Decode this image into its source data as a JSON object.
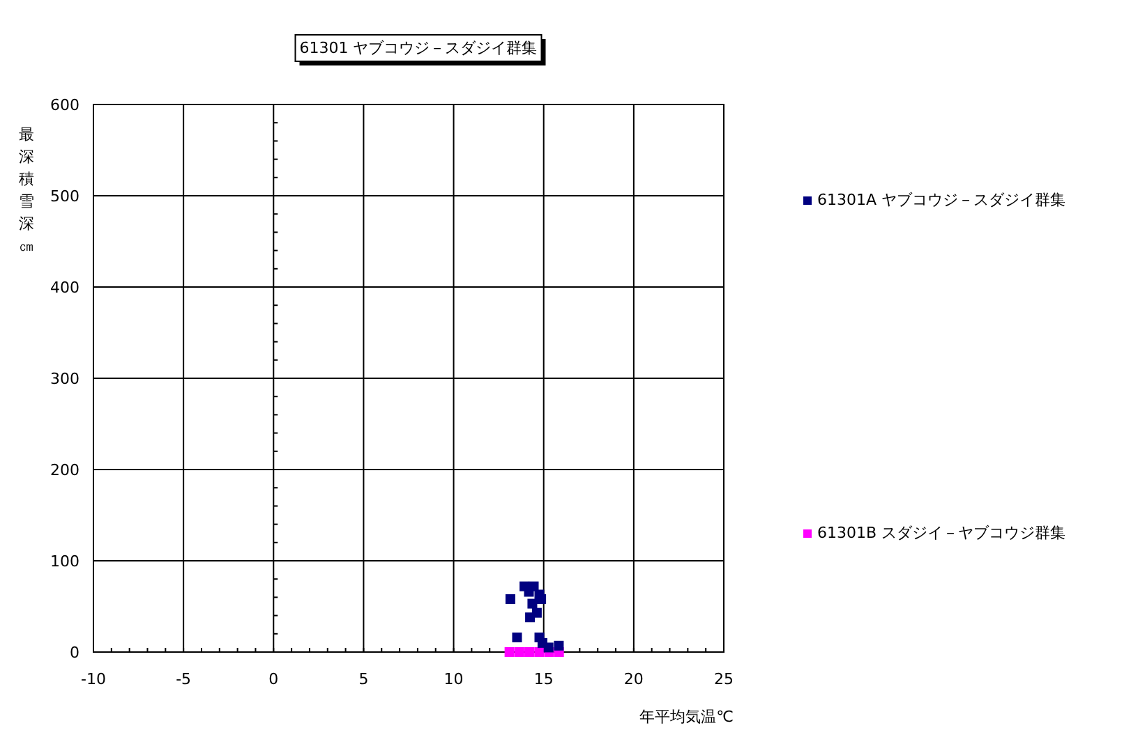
{
  "chart_data": {
    "type": "scatter",
    "title": "61301 ヤブコウジ－スダジイ群集",
    "xlabel": "年平均気温℃",
    "ylabel": "最深積雪深㎝",
    "xlim": [
      -10,
      25
    ],
    "xticks": [
      -10,
      -5,
      0,
      5,
      10,
      15,
      20,
      25
    ],
    "ylim": [
      0,
      600
    ],
    "yticks": [
      0,
      100,
      200,
      300,
      400,
      500,
      600
    ],
    "grid": true,
    "legend": "right",
    "marker": "square",
    "series": [
      {
        "name": "61301A ヤブコウジ－スダジイ群集",
        "color": "#000080",
        "x": [
          13.93,
          14.45,
          13.15,
          14.18,
          14.76,
          14.86,
          14.37,
          14.62,
          14.24,
          13.52,
          14.76,
          14.93,
          15.27,
          15.84
        ],
        "values": [
          72,
          72,
          58,
          66,
          63,
          58,
          53,
          43,
          38,
          16,
          16,
          10,
          5,
          7
        ]
      },
      {
        "name": "61301B スダジイ－ヤブコウジ群集",
        "color": "#ff00ff",
        "x": [
          13.1,
          13.65,
          14.2,
          14.75,
          15.3,
          15.85
        ],
        "values": [
          0,
          0,
          0,
          0,
          0,
          0
        ]
      }
    ]
  }
}
